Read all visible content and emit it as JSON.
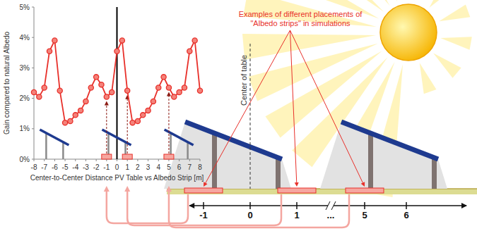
{
  "chart_data": {
    "type": "line",
    "xlabel": "Center-to-Center Distance PV Table vs Albedo Strip [m]",
    "ylabel": "Gain compared to natural Albedo",
    "x": [
      -8,
      -7.5,
      -7,
      -6.5,
      -6,
      -5.5,
      -5,
      -4.5,
      -4,
      -3.5,
      -3,
      -2.5,
      -2,
      -1.5,
      -1,
      -0.5,
      0,
      0.5,
      1,
      1.5,
      2,
      2.5,
      3,
      3.5,
      4,
      4.5,
      5,
      5.5,
      6,
      6.5,
      7,
      7.5,
      8
    ],
    "values": [
      2.2,
      2.05,
      2.35,
      3.55,
      3.9,
      2.25,
      1.2,
      1.25,
      1.45,
      1.6,
      1.9,
      2.35,
      2.7,
      2.45,
      2.05,
      2.2,
      3.55,
      3.9,
      2.25,
      1.2,
      1.25,
      1.45,
      1.6,
      1.9,
      2.35,
      2.7,
      2.35,
      2.05,
      2.2,
      2.35,
      3.55,
      3.9,
      2.25
    ],
    "color": "#e8302a",
    "marker": "circle",
    "xlim": [
      -8,
      8
    ],
    "xticks": [
      -8,
      -7,
      -6,
      -5,
      -4,
      -3,
      -2,
      -1,
      0,
      1,
      2,
      3,
      4,
      5,
      6,
      7,
      8
    ],
    "ylim": [
      0,
      5
    ],
    "yticks": [
      {
        "value": 0,
        "label": "0%"
      },
      {
        "value": 1,
        "label": "1%"
      },
      {
        "value": 2,
        "label": "2%"
      },
      {
        "value": 3,
        "label": "3%"
      },
      {
        "value": 4,
        "label": "4%"
      },
      {
        "value": 5,
        "label": "5%"
      }
    ],
    "grid": false,
    "table_positions": [
      -6,
      0,
      6
    ]
  },
  "diagram": {
    "annotation": "Examples of different placements of \"Albedo strips\" in simulations",
    "center_label": "Center of table",
    "axis_ticks": [
      -1,
      0,
      1,
      5,
      6
    ],
    "axis_gap": "...",
    "strip_positions": [
      -1,
      1,
      5
    ],
    "table_positions": [
      0,
      6
    ]
  }
}
